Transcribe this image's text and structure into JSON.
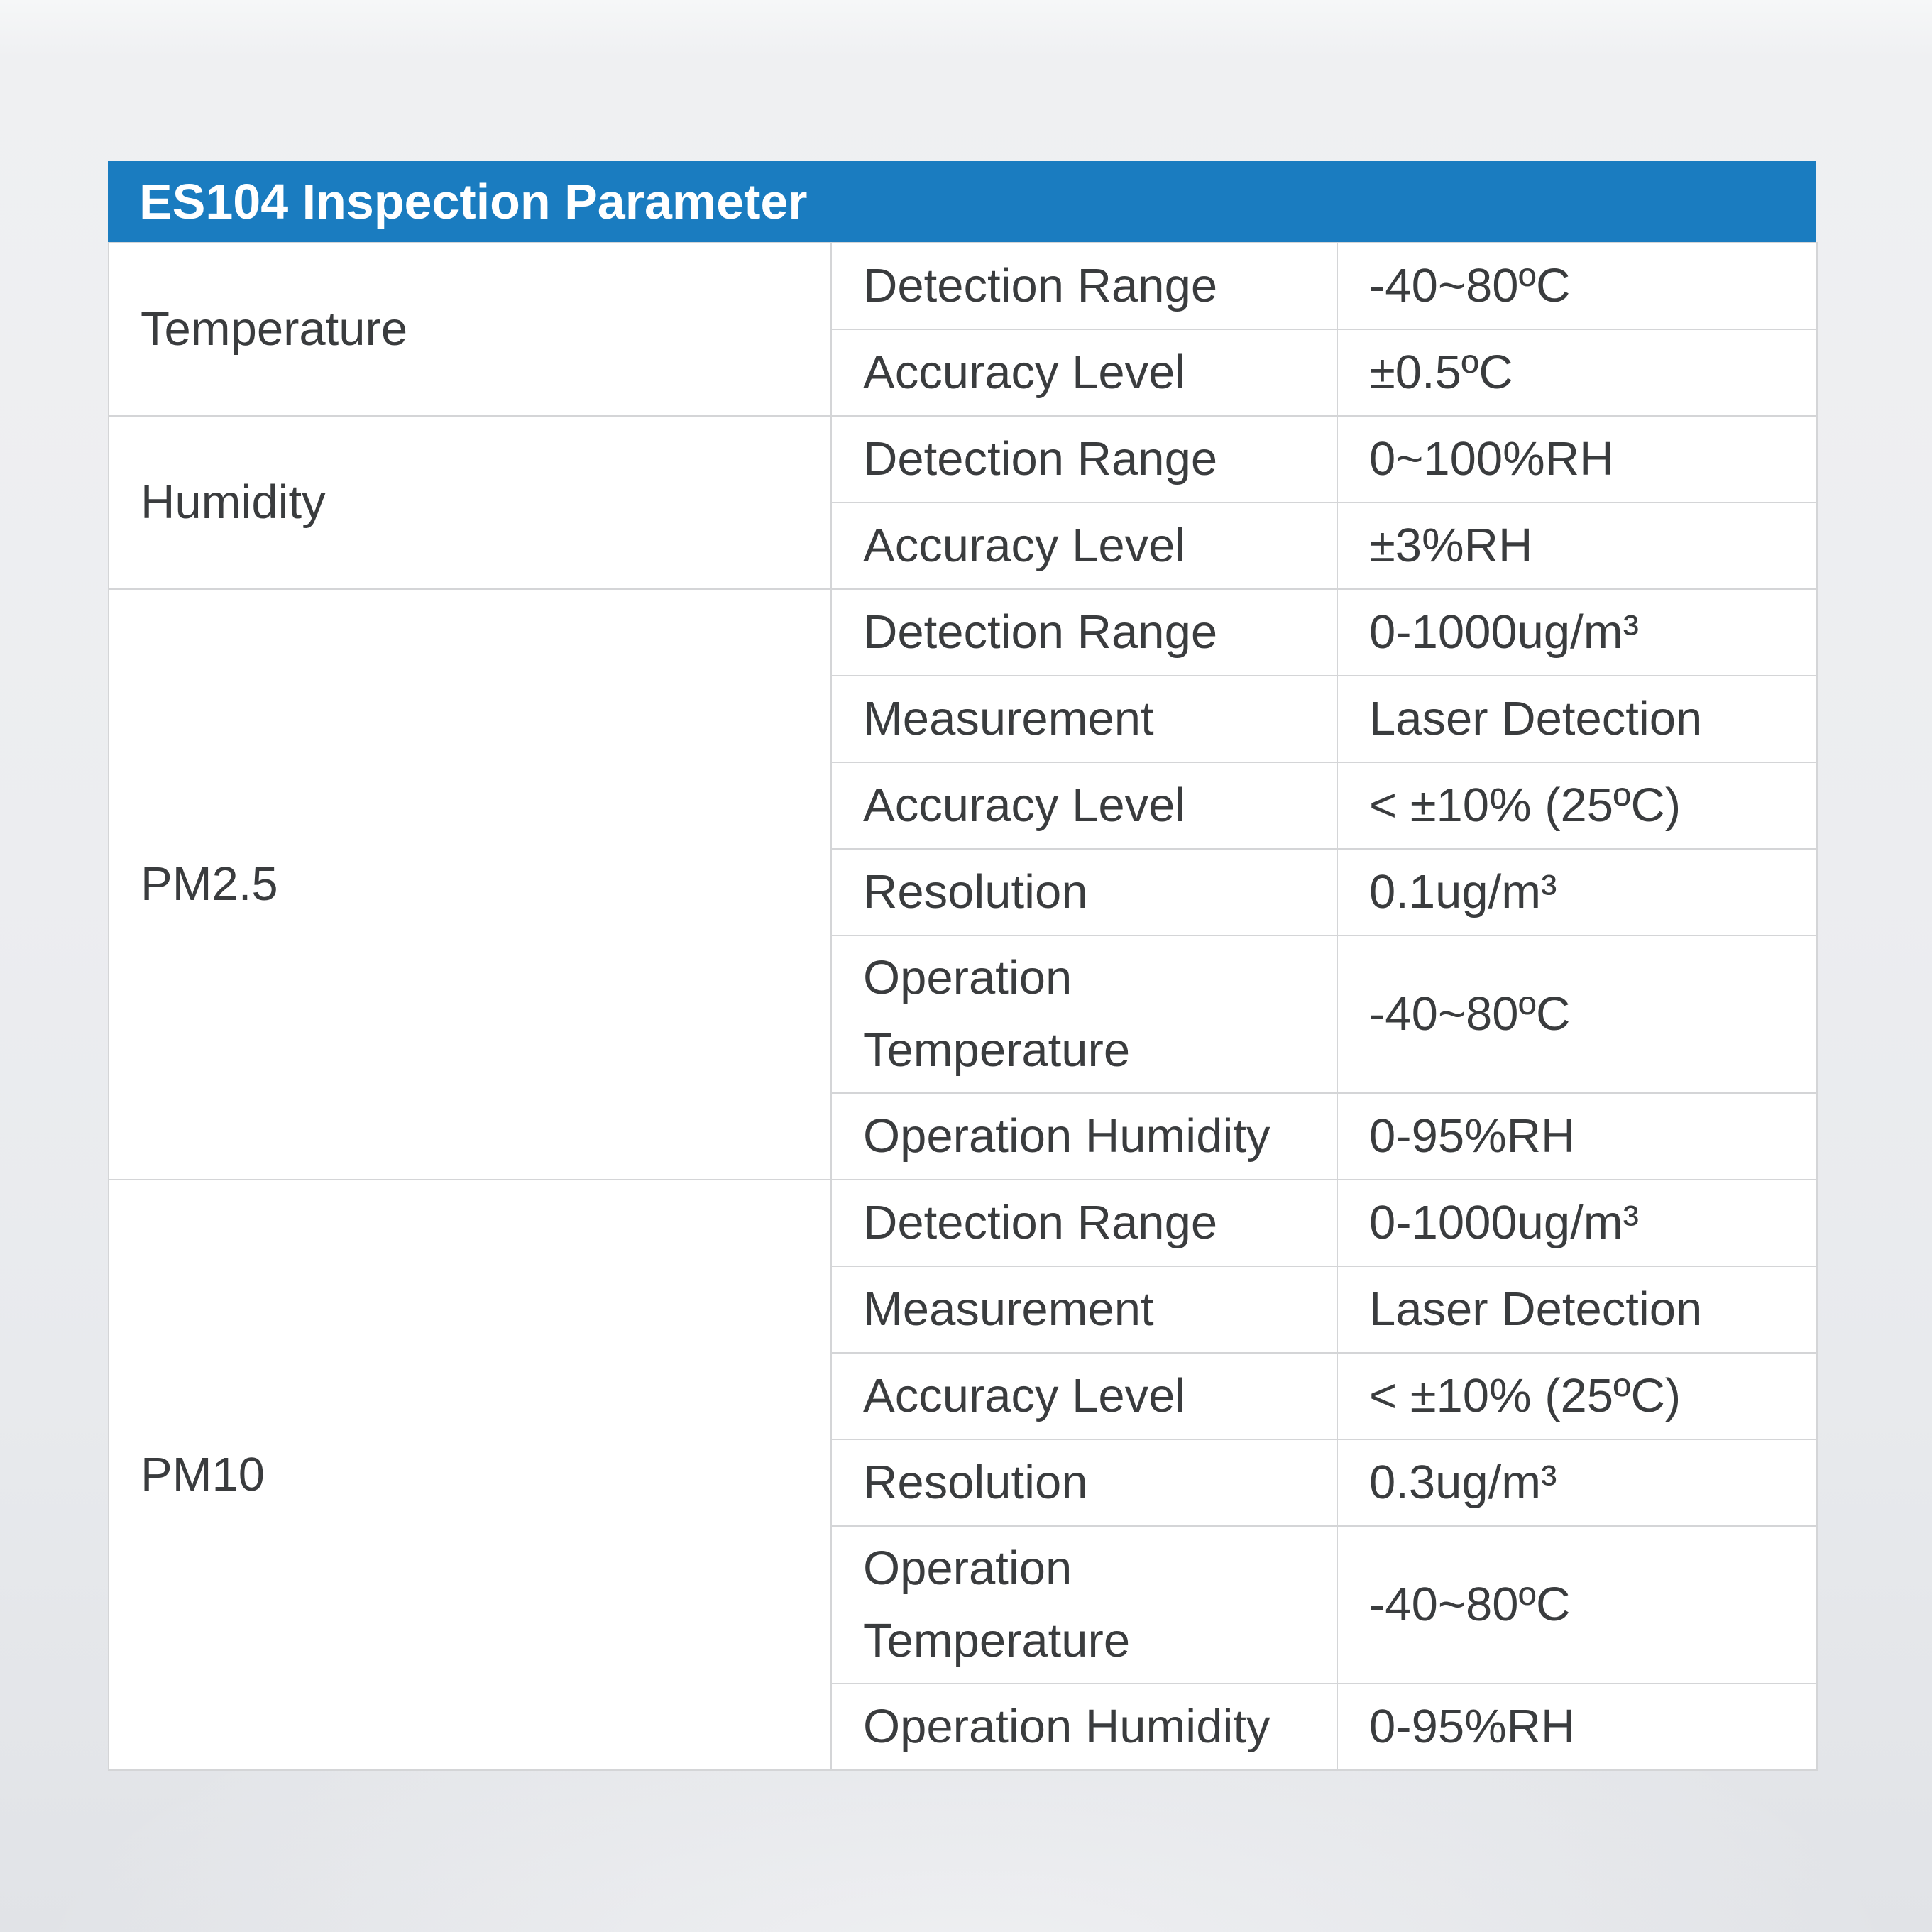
{
  "title_bar": {
    "title": "ES104 Inspection Parameter"
  },
  "colors": {
    "accent_blue": "#1a7cc0",
    "title_text": "#ffffff",
    "body_text": "#3a3c3e",
    "cell_background": "#ffffff",
    "table_border": "#d4d5d7",
    "page_background_top": "#f6f7f8",
    "page_background_bottom": "#e1e3e7"
  },
  "table": {
    "groups": [
      {
        "label": "Temperature",
        "rows": [
          {
            "param": "Detection Range",
            "value": "-40~80ºC"
          },
          {
            "param": "Accuracy Level",
            "value": "±0.5ºC"
          }
        ]
      },
      {
        "label": "Humidity",
        "rows": [
          {
            "param": "Detection Range",
            "value": "0~100%RH"
          },
          {
            "param": "Accuracy Level",
            "value": "±3%RH"
          }
        ]
      },
      {
        "label": "PM2.5",
        "rows": [
          {
            "param": "Detection Range",
            "value": "0-1000ug/m³"
          },
          {
            "param": "Measurement",
            "value": "Laser Detection"
          },
          {
            "param": "Accuracy Level",
            "value": "< ±10% (25ºC)"
          },
          {
            "param": "Resolution",
            "value": "0.1ug/m³"
          },
          {
            "param": "Operation Temperature",
            "value": "-40~80ºC"
          },
          {
            "param": "Operation Humidity",
            "value": "0-95%RH"
          }
        ]
      },
      {
        "label": "PM10",
        "rows": [
          {
            "param": "Detection Range",
            "value": "0-1000ug/m³"
          },
          {
            "param": "Measurement",
            "value": "Laser Detection"
          },
          {
            "param": "Accuracy Level",
            "value": "< ±10% (25ºC)"
          },
          {
            "param": "Resolution",
            "value": "0.3ug/m³"
          },
          {
            "param": "Operation Temperature",
            "value": "-40~80ºC"
          },
          {
            "param": "Operation Humidity",
            "value": "0-95%RH"
          }
        ]
      }
    ]
  }
}
